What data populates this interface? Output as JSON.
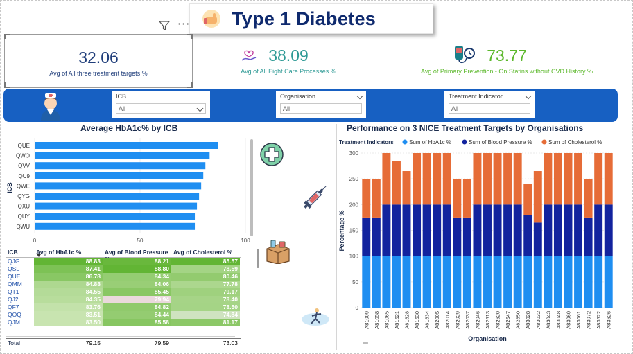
{
  "header": {
    "title": "Type 1 Diabetes",
    "more_label": "···"
  },
  "kpis": [
    {
      "value": "32.06",
      "label": "Avg of All three treatment targets %"
    },
    {
      "value": "38.09",
      "label": "Avg of All Eight Care Processes %"
    },
    {
      "value": "73.77",
      "label": "Avg of Primary Prevention - On Statins without CVD History  %"
    }
  ],
  "slicers": [
    {
      "label": "ICB",
      "value": "All"
    },
    {
      "label": "Organisation",
      "value": "All"
    },
    {
      "label": "Treatment Indicator",
      "value": "All"
    }
  ],
  "colors": {
    "bar_blue": "#1f8ef1",
    "navy": "#12239e",
    "orange": "#e66c37",
    "slicer_bg": "#1760c2",
    "title": "#0f2a6e"
  },
  "icons": [
    "pointing-hand-icon",
    "filter-icon",
    "more-options-icon",
    "nurse-icon",
    "first-aid-icon",
    "syringe-icon",
    "medical-box-icon",
    "runner-icon"
  ],
  "chart_data": [
    {
      "type": "bar",
      "orientation": "horizontal",
      "title": "Average HbA1c% by ICB",
      "ylabel": "ICB",
      "categories": [
        "QUE",
        "QWO",
        "QVV",
        "QU9",
        "QWE",
        "QYG",
        "QXU",
        "QUY",
        "QWU"
      ],
      "values": [
        87,
        83,
        81,
        80,
        79,
        78,
        77,
        76,
        76
      ],
      "xlim": [
        0,
        100
      ],
      "xticks": [
        "0",
        "50",
        "100"
      ]
    },
    {
      "type": "bar",
      "stacked": true,
      "title": "Performance on 3 NICE Treatment Targets by Organisations",
      "xlabel": "Organisation",
      "ylabel": "Percentage %",
      "legend_title": "Treatment Indicators",
      "legend_position": "top",
      "ylim": [
        0,
        300
      ],
      "yticks": [
        "0",
        "50",
        "100",
        "150",
        "200",
        "250",
        "300"
      ],
      "categories": [
        "A81009",
        "A81058",
        "A81065",
        "A81621",
        "A81628",
        "A81630",
        "A81634",
        "A82005",
        "A82014",
        "A82029",
        "A82037",
        "A82046",
        "A82613",
        "A82620",
        "A82647",
        "A82650",
        "A83028",
        "A83032",
        "A83043",
        "A83048",
        "A83060",
        "A83061",
        "A83072",
        "A83622",
        "A83626"
      ],
      "series": [
        {
          "name": "Sum of HbA1c %",
          "values": [
            100,
            100,
            100,
            100,
            100,
            100,
            100,
            100,
            100,
            100,
            100,
            100,
            100,
            100,
            100,
            100,
            100,
            100,
            100,
            100,
            100,
            100,
            100,
            100,
            100
          ]
        },
        {
          "name": "Sum of Blood Pressure %",
          "values": [
            75,
            75,
            100,
            100,
            100,
            100,
            100,
            100,
            100,
            75,
            75,
            100,
            100,
            100,
            100,
            100,
            80,
            65,
            100,
            100,
            100,
            100,
            75,
            100,
            100
          ]
        },
        {
          "name": "Sum of Cholesterol %",
          "values": [
            75,
            75,
            100,
            85,
            65,
            100,
            100,
            100,
            100,
            75,
            75,
            100,
            100,
            100,
            100,
            100,
            60,
            100,
            100,
            100,
            100,
            100,
            75,
            100,
            100
          ]
        }
      ]
    },
    {
      "type": "table",
      "columns": [
        "ICB",
        "Avg of HbA1c %",
        "Avg of Blood Pressure %",
        "Avg of Cholesterol %"
      ],
      "rows": [
        [
          "QJG",
          "88.83",
          "88.21",
          "85.57"
        ],
        [
          "QSL",
          "87.41",
          "88.80",
          "78.59"
        ],
        [
          "QUE",
          "86.78",
          "84.34",
          "80.46"
        ],
        [
          "QMM",
          "84.88",
          "84.06",
          "77.78"
        ],
        [
          "QT1",
          "84.55",
          "85.45",
          "79.17"
        ],
        [
          "QJ2",
          "84.35",
          "79.94",
          "78.40"
        ],
        [
          "QF7",
          "83.76",
          "84.82",
          "78.50"
        ],
        [
          "QOQ",
          "83.51",
          "84.44",
          "74.84"
        ],
        [
          "QJM",
          "83.50",
          "85.58",
          "81.17"
        ]
      ],
      "total": [
        "Total",
        "79.15",
        "79.59",
        "73.03"
      ]
    }
  ]
}
